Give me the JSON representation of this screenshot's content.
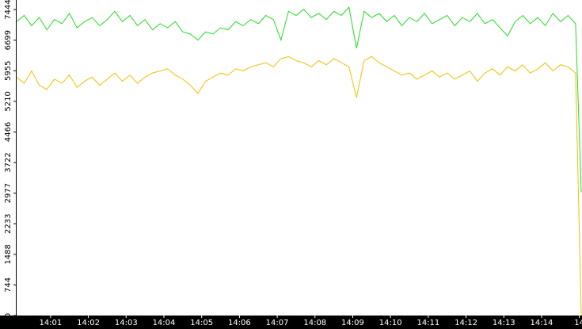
{
  "chart_data": {
    "type": "line",
    "x": [
      0.1,
      0.3,
      0.5,
      0.7,
      0.9,
      1.1,
      1.3,
      1.5,
      1.7,
      1.9,
      2.1,
      2.3,
      2.5,
      2.7,
      2.9,
      3.1,
      3.3,
      3.5,
      3.7,
      3.9,
      4.1,
      4.3,
      4.5,
      4.7,
      4.9,
      5.1,
      5.3,
      5.5,
      5.7,
      5.9,
      6.1,
      6.3,
      6.5,
      6.7,
      6.9,
      7.1,
      7.3,
      7.5,
      7.7,
      7.9,
      8.1,
      8.3,
      8.5,
      8.7,
      8.9,
      9.1,
      9.3,
      9.5,
      9.7,
      9.9,
      10.1,
      10.3,
      10.5,
      10.7,
      10.9,
      11.1,
      11.3,
      11.5,
      11.7,
      11.9,
      12.1,
      12.3,
      12.5,
      12.7,
      12.9,
      13.1,
      13.3,
      13.5,
      13.7,
      13.9,
      14.1,
      14.3,
      14.5,
      14.7,
      14.9,
      15.05
    ],
    "series": [
      {
        "color": "#22dd22",
        "values": [
          7150,
          7300,
          7050,
          7250,
          6950,
          7200,
          7100,
          7350,
          7000,
          7150,
          7250,
          7050,
          7200,
          7400,
          7150,
          7300,
          7050,
          7200,
          6950,
          7100,
          7000,
          7150,
          6900,
          6850,
          6700,
          6900,
          6850,
          7000,
          6950,
          7150,
          7050,
          7200,
          7100,
          7300,
          7200,
          6700,
          7400,
          7300,
          7450,
          7250,
          7350,
          7200,
          7400,
          7300,
          7500,
          6500,
          7400,
          7250,
          7350,
          7150,
          7300,
          7050,
          7250,
          7150,
          7350,
          7100,
          7200,
          7300,
          7050,
          7250,
          7150,
          7350,
          7100,
          7200,
          7000,
          6800,
          7150,
          7300,
          7100,
          7250,
          7050,
          7350,
          7150,
          7300,
          7100,
          3000
        ]
      },
      {
        "color": "#f0c000",
        "values": [
          5800,
          5650,
          5950,
          5600,
          5500,
          5750,
          5650,
          5850,
          5550,
          5700,
          5800,
          5600,
          5750,
          5900,
          5700,
          5850,
          5650,
          5800,
          5900,
          5950,
          6000,
          5850,
          5750,
          5600,
          5400,
          5700,
          5800,
          5900,
          5850,
          6000,
          5950,
          6050,
          6100,
          6150,
          6050,
          6250,
          6300,
          6200,
          6150,
          6050,
          6200,
          6100,
          6250,
          6150,
          6050,
          5300,
          6200,
          6300,
          6150,
          6050,
          5950,
          5850,
          5900,
          5750,
          5850,
          5950,
          5800,
          5900,
          5750,
          5850,
          5950,
          5700,
          5900,
          6000,
          5850,
          6050,
          5950,
          6100,
          5900,
          6000,
          6150,
          5950,
          6100,
          6050,
          5900,
          0
        ]
      }
    ],
    "xlim": [
      0.08,
      15.07
    ],
    "xticks": [
      {
        "value": 1,
        "label": "14:01"
      },
      {
        "value": 2,
        "label": "14:02"
      },
      {
        "value": 3,
        "label": "14:03"
      },
      {
        "value": 4,
        "label": "14:04"
      },
      {
        "value": 5,
        "label": "14:05"
      },
      {
        "value": 6,
        "label": "14:06"
      },
      {
        "value": 7,
        "label": "14:07"
      },
      {
        "value": 8,
        "label": "14:08"
      },
      {
        "value": 9,
        "label": "14:09"
      },
      {
        "value": 10,
        "label": "14:10"
      },
      {
        "value": 11,
        "label": "14:11"
      },
      {
        "value": 12,
        "label": "14:12"
      },
      {
        "value": 13,
        "label": "14:13"
      },
      {
        "value": 14,
        "label": "14:14"
      },
      {
        "value": 15,
        "label": "14"
      }
    ],
    "ylim": [
      0,
      7676
    ],
    "yticks": [
      0,
      744,
      1488,
      2233,
      2977,
      3722,
      4466,
      5210,
      5955,
      6699,
      7444
    ]
  }
}
